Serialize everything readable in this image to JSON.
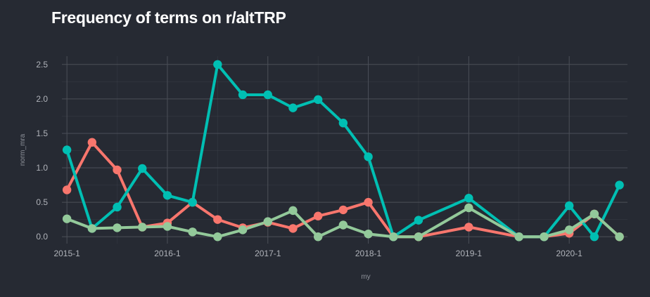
{
  "chart_data": {
    "type": "line",
    "title": "Frequency of terms on r/altTRP",
    "xlabel": "my",
    "ylabel": "norm_mra",
    "xlim": [
      2014.95,
      2020.58
    ],
    "ylim": [
      -0.1,
      2.62
    ],
    "x_ticks": [
      2015,
      2016,
      2017,
      2018,
      2019,
      2020
    ],
    "x_tick_labels": [
      "2015-1",
      "2016-1",
      "2017-1",
      "2018-1",
      "2019-1",
      "2020-1"
    ],
    "y_ticks": [
      0.0,
      0.5,
      1.0,
      1.5,
      2.0,
      2.5
    ],
    "y_tick_labels": [
      "0.0",
      "0.5",
      "1.0",
      "1.5",
      "2.0",
      "2.5"
    ],
    "grid": true,
    "legend": "none",
    "series": [
      {
        "color": "#f8766d",
        "x": [
          2015.0,
          2015.25,
          2015.5,
          2015.75,
          2016.0,
          2016.25,
          2016.5,
          2016.75,
          2017.0,
          2017.25,
          2017.5,
          2017.75,
          2018.0,
          2018.25,
          2018.5,
          2019.0,
          2019.5,
          2019.75,
          2020.0,
          2020.25,
          2020.5
        ],
        "y": [
          0.68,
          1.37,
          0.97,
          0.14,
          0.2,
          0.5,
          0.25,
          0.13,
          0.21,
          0.12,
          0.3,
          0.39,
          0.5,
          0.0,
          0.0,
          0.14,
          0.0,
          0.0,
          0.05,
          0.33,
          0.0
        ]
      },
      {
        "color": "#00bfb3",
        "x": [
          2015.0,
          2015.25,
          2015.5,
          2015.75,
          2016.0,
          2016.25,
          2016.5,
          2016.75,
          2017.0,
          2017.25,
          2017.5,
          2017.75,
          2018.0,
          2018.25,
          2018.5,
          2019.0,
          2019.5,
          2019.75,
          2020.0,
          2020.25,
          2020.5
        ],
        "y": [
          1.26,
          0.12,
          0.43,
          0.99,
          0.6,
          0.5,
          2.5,
          2.06,
          2.06,
          1.87,
          1.99,
          1.65,
          1.16,
          0.0,
          0.24,
          0.56,
          0.0,
          0.0,
          0.45,
          0.0,
          0.75
        ]
      },
      {
        "color": "#93c99a",
        "x": [
          2015.0,
          2015.25,
          2015.5,
          2015.75,
          2016.0,
          2016.25,
          2016.5,
          2016.75,
          2017.0,
          2017.25,
          2017.5,
          2017.75,
          2018.0,
          2018.25,
          2018.5,
          2019.0,
          2019.5,
          2019.75,
          2020.0,
          2020.25,
          2020.5
        ],
        "y": [
          0.26,
          0.12,
          0.13,
          0.14,
          0.15,
          0.07,
          0.0,
          0.1,
          0.22,
          0.38,
          0.0,
          0.17,
          0.04,
          0.0,
          0.0,
          0.42,
          0.0,
          0.0,
          0.1,
          0.33,
          0.0
        ]
      }
    ]
  },
  "colors": {
    "background": "#262a33",
    "grid": "#4b4f58",
    "text": "#b0b3ba",
    "title": "#ffffff"
  }
}
